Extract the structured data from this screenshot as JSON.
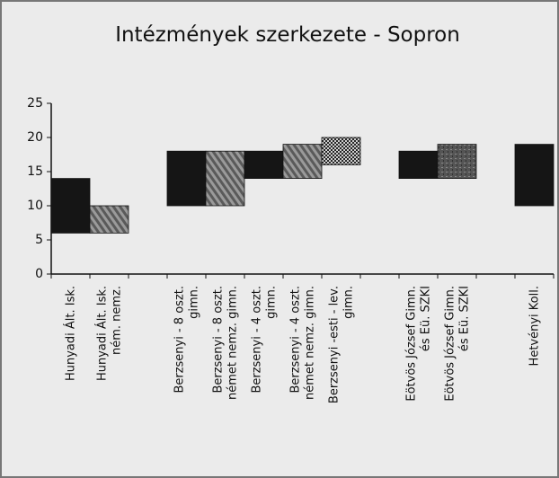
{
  "chart_data": {
    "type": "floating-bar",
    "title": "Intézmények szerkezete - Sopron",
    "categories": [
      [
        "Hunyadi Ált. Isk."
      ],
      [
        "Hunyadi Ált. Isk.",
        "ném. nemz."
      ],
      null,
      [
        "Berzsenyi - 8 oszt.",
        "gimn."
      ],
      [
        "Berzsenyi - 8 oszt.",
        "német nemz. gimn."
      ],
      [
        "Berzsenyi - 4 oszt.",
        "gimn."
      ],
      [
        "Berzsenyi - 4 oszt.",
        "német nemz. gimn."
      ],
      [
        "Berzsenyi -esti - lev.",
        "gimn."
      ],
      null,
      [
        "Eötvös József Gimn.",
        "és Eü. SZKI"
      ],
      [
        "Eötvös József Gimn.",
        "és Eü. SZKI"
      ],
      null,
      [
        "Hetvényi Koll."
      ]
    ],
    "low": [
      6,
      6,
      null,
      10,
      10,
      14,
      14,
      16,
      null,
      14,
      14,
      null,
      10
    ],
    "high": [
      14,
      10,
      null,
      18,
      18,
      18,
      19,
      20,
      null,
      18,
      19,
      null,
      19
    ],
    "fills": [
      "solid",
      "hatch",
      null,
      "solid",
      "hatch",
      "solid",
      "hatch",
      "dots",
      null,
      "solid",
      "mottle",
      null,
      "solid"
    ],
    "ylim": [
      0,
      25
    ],
    "yticks": [
      0,
      5,
      10,
      15,
      20,
      25
    ]
  }
}
